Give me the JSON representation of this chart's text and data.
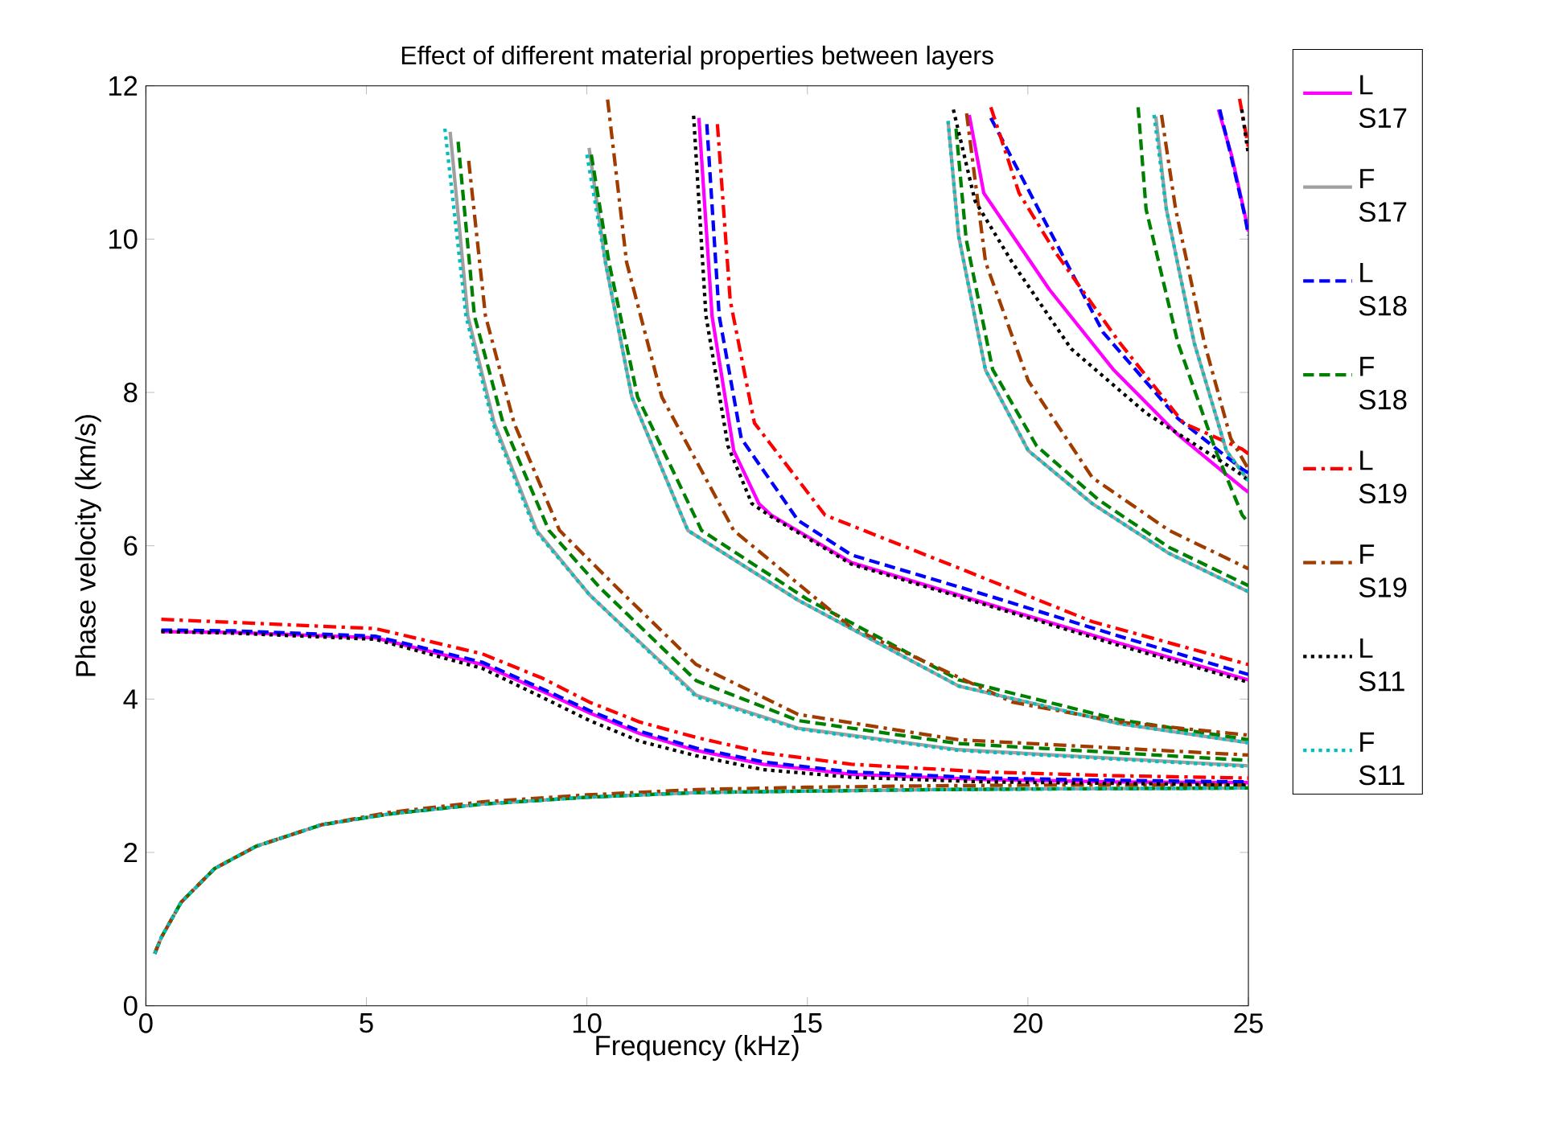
{
  "chart_data": {
    "type": "line",
    "title": "Effect of different material properties between layers",
    "xlabel": "Frequency (kHz)",
    "ylabel": "Phase velocity (km/s)",
    "xlim": [
      0,
      25
    ],
    "ylim": [
      0,
      12
    ],
    "xticks": [
      0,
      5,
      10,
      15,
      20,
      25
    ],
    "yticks": [
      0,
      2,
      4,
      6,
      8,
      10,
      12
    ],
    "legend": "right",
    "series": [
      {
        "name": "L S17",
        "color": "#ff00ff",
        "line_style": "solid",
        "x": [
          0.35,
          2,
          5.2,
          7.63,
          9,
          10.06,
          11.2,
          12.48,
          14,
          16,
          19,
          22,
          25,
          null,
          12.54,
          12.84,
          13.33,
          13.9,
          14.18,
          16,
          19.04,
          22.07,
          25,
          null,
          18.67,
          19.0,
          20.49,
          21.95,
          23.4,
          24.86,
          25,
          null,
          24.32,
          24.62,
          24.92,
          25
        ],
        "values": [
          4.88,
          4.87,
          4.8,
          4.45,
          4.1,
          3.82,
          3.55,
          3.33,
          3.15,
          3.02,
          2.95,
          2.92,
          2.91,
          null,
          11.58,
          8.99,
          7.24,
          6.55,
          6.4,
          5.78,
          5.25,
          4.73,
          4.25,
          null,
          11.62,
          10.6,
          9.34,
          8.29,
          7.45,
          6.76,
          6.7,
          null,
          11.69,
          11.09,
          10.32,
          10.1
        ]
      },
      {
        "name": "F S17",
        "color": "#a0a0a0",
        "line_style": "solid",
        "x": [
          0.2,
          0.35,
          0.8,
          1.56,
          2.5,
          3.98,
          5.5,
          7.63,
          10,
          12.48,
          15,
          18,
          21,
          25,
          null,
          6.9,
          7.3,
          7.9,
          8.86,
          10.06,
          12.48,
          14.79,
          18.43,
          25,
          null,
          10.05,
          10.42,
          11.02,
          12.29,
          14.79,
          18.43,
          22.07,
          25,
          null,
          18.19,
          18.43,
          19.04,
          20.01,
          21.46,
          23.2,
          25,
          null,
          22.9,
          23.14,
          23.77,
          24.5,
          25
        ],
        "values": [
          0.68,
          0.89,
          1.35,
          1.79,
          2.08,
          2.36,
          2.5,
          2.63,
          2.72,
          2.78,
          2.8,
          2.82,
          2.83,
          2.84,
          null,
          11.4,
          9.0,
          7.6,
          6.2,
          5.36,
          4.05,
          3.62,
          3.34,
          3.13,
          null,
          11.19,
          9.7,
          7.94,
          6.2,
          5.29,
          4.17,
          3.68,
          3.43,
          null,
          11.54,
          10.04,
          8.29,
          7.24,
          6.55,
          5.9,
          5.4,
          null,
          11.6,
          10.39,
          8.65,
          7.24,
          6.85
        ]
      },
      {
        "name": "L S18",
        "color": "#0000ff",
        "line_style": "dashed",
        "x": [
          0.35,
          2,
          5.2,
          7.63,
          9,
          10.06,
          11.2,
          12.48,
          14,
          16,
          19,
          22,
          25,
          null,
          12.72,
          13.0,
          13.5,
          14.79,
          16.0,
          19.04,
          22.07,
          25,
          null,
          19.16,
          20.24,
          21.71,
          23.4,
          24.86,
          25,
          null,
          24.35,
          24.62,
          24.92,
          25
        ],
        "values": [
          4.9,
          4.89,
          4.82,
          4.48,
          4.13,
          3.85,
          3.58,
          3.36,
          3.18,
          3.05,
          2.97,
          2.94,
          2.92,
          null,
          11.5,
          9.0,
          7.4,
          6.33,
          5.88,
          5.36,
          4.82,
          4.32,
          null,
          11.58,
          10.39,
          8.78,
          7.66,
          7.0,
          6.95,
          null,
          11.69,
          11.05,
          10.3,
          10.05
        ]
      },
      {
        "name": "F S18",
        "color": "#008000",
        "line_style": "dashed",
        "x": [
          0.2,
          0.35,
          0.8,
          1.56,
          2.5,
          3.98,
          5.5,
          7.63,
          10,
          12.48,
          15,
          18,
          21,
          25,
          null,
          7.08,
          7.45,
          8.1,
          9.14,
          10.3,
          12.48,
          14.79,
          18.43,
          25,
          null,
          10.1,
          10.5,
          11.15,
          12.6,
          15,
          18.43,
          22.07,
          25,
          null,
          18.37,
          18.6,
          19.2,
          20.2,
          21.6,
          23.2,
          25,
          null,
          22.5,
          22.68,
          23.4,
          24.26,
          24.86,
          25
        ],
        "values": [
          0.68,
          0.89,
          1.35,
          1.79,
          2.08,
          2.36,
          2.5,
          2.63,
          2.72,
          2.78,
          2.8,
          2.82,
          2.83,
          2.84,
          null,
          11.27,
          9.0,
          7.6,
          6.2,
          5.45,
          4.24,
          3.72,
          3.42,
          3.2,
          null,
          11.1,
          9.7,
          7.94,
          6.2,
          5.3,
          4.25,
          3.73,
          3.47,
          null,
          11.44,
          10.0,
          8.3,
          7.3,
          6.6,
          5.98,
          5.48,
          null,
          11.72,
          10.39,
          8.65,
          7.24,
          6.4,
          6.3
        ]
      },
      {
        "name": "L S19",
        "color": "#ff0000",
        "line_style": "dashdot",
        "x": [
          0.35,
          2,
          5.2,
          7.63,
          9,
          10.06,
          11.2,
          12.48,
          14,
          16,
          19,
          22,
          25,
          null,
          12.96,
          13.25,
          13.8,
          15.4,
          18.43,
          21.46,
          25,
          null,
          19.16,
          19.8,
          20.62,
          22.08,
          23.53,
          24.86,
          25,
          null,
          24.8,
          25
        ],
        "values": [
          5.04,
          5.0,
          4.92,
          4.59,
          4.27,
          3.96,
          3.7,
          3.5,
          3.3,
          3.15,
          3.05,
          3.0,
          2.97,
          null,
          11.5,
          9.2,
          7.6,
          6.4,
          5.71,
          5.01,
          4.45,
          null,
          11.72,
          10.6,
          9.83,
          8.65,
          7.6,
          7.26,
          7.2,
          null,
          11.83,
          11.2
        ]
      },
      {
        "name": "F S19",
        "color": "#a03c00",
        "line_style": "dashdot",
        "x": [
          0.2,
          0.35,
          0.8,
          1.56,
          2.5,
          3.98,
          5.5,
          7.63,
          10,
          12.48,
          15,
          18,
          21,
          25,
          null,
          7.32,
          7.7,
          8.35,
          9.38,
          10.6,
          12.48,
          14.79,
          18.43,
          25,
          null,
          10.47,
          10.9,
          11.7,
          13.33,
          16.0,
          19.65,
          22.07,
          25,
          null,
          18.61,
          19.04,
          20.01,
          21.46,
          23.2,
          25,
          null,
          23.03,
          23.35,
          24.0,
          24.6,
          25
        ],
        "values": [
          0.68,
          0.89,
          1.35,
          1.79,
          2.08,
          2.36,
          2.52,
          2.66,
          2.75,
          2.82,
          2.85,
          2.87,
          2.88,
          2.88,
          null,
          11.02,
          9.0,
          7.6,
          6.2,
          5.5,
          4.45,
          3.8,
          3.47,
          3.27,
          null,
          11.82,
          9.7,
          7.94,
          6.2,
          4.93,
          3.96,
          3.7,
          3.53,
          null,
          11.64,
          9.7,
          8.15,
          6.89,
          6.2,
          5.7,
          null,
          11.62,
          10.39,
          8.65,
          7.4,
          7.0
        ]
      },
      {
        "name": "L S11",
        "color": "#000000",
        "line_style": "dotted",
        "x": [
          0.35,
          2,
          5.2,
          7.63,
          9,
          10.06,
          11.2,
          12.48,
          14,
          16,
          19,
          22,
          25,
          null,
          12.42,
          12.7,
          13.2,
          13.74,
          14.18,
          16,
          19.04,
          22.07,
          25,
          null,
          18.31,
          18.8,
          19.64,
          20.98,
          22.68,
          24.74,
          25,
          null,
          24.85,
          25
        ],
        "values": [
          4.88,
          4.86,
          4.78,
          4.4,
          4.02,
          3.72,
          3.45,
          3.26,
          3.08,
          2.98,
          2.92,
          2.9,
          2.88,
          null,
          11.61,
          9.0,
          7.3,
          6.55,
          6.38,
          5.76,
          5.23,
          4.7,
          4.22,
          null,
          11.69,
          10.5,
          9.7,
          8.57,
          7.73,
          6.97,
          6.85,
          null,
          11.69,
          11.1
        ]
      },
      {
        "name": "F S11",
        "color": "#00bfbf",
        "line_style": "dotted",
        "x": [
          0.2,
          0.35,
          0.8,
          1.56,
          2.5,
          3.98,
          5.5,
          7.63,
          10,
          12.48,
          15,
          18,
          21,
          25,
          null,
          6.78,
          7.26,
          7.87,
          8.83,
          10.06,
          12.48,
          14.79,
          18.43,
          25,
          null,
          10.0,
          10.42,
          11.02,
          12.29,
          14.79,
          18.43,
          22.07,
          25,
          null,
          18.19,
          18.43,
          19.04,
          20.01,
          21.46,
          23.2,
          25,
          null,
          22.86,
          23.14,
          23.77,
          24.5,
          25
        ],
        "values": [
          0.68,
          0.89,
          1.35,
          1.79,
          2.08,
          2.36,
          2.5,
          2.63,
          2.72,
          2.78,
          2.8,
          2.82,
          2.83,
          2.84,
          null,
          11.44,
          8.99,
          7.6,
          6.2,
          5.36,
          4.03,
          3.61,
          3.33,
          3.12,
          null,
          11.1,
          9.7,
          7.94,
          6.2,
          5.29,
          4.17,
          3.68,
          3.43,
          null,
          11.54,
          10.04,
          8.29,
          7.24,
          6.55,
          5.9,
          5.4,
          null,
          11.62,
          10.39,
          8.65,
          7.24,
          6.85
        ]
      }
    ]
  }
}
